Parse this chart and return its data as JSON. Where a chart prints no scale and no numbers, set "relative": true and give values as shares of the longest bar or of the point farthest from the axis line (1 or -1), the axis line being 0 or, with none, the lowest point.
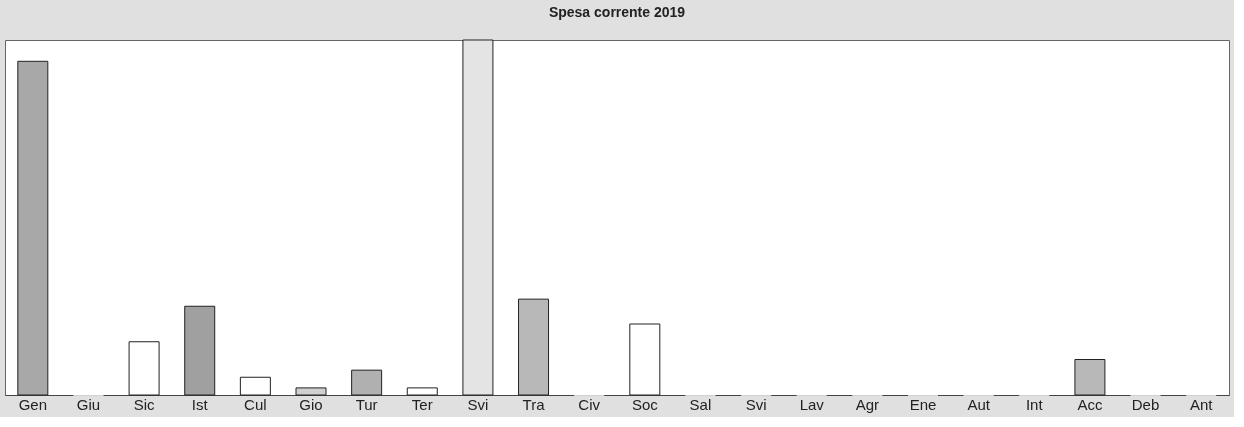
{
  "chart_data": {
    "type": "bar",
    "title": "Spesa corrente 2019",
    "relative": true,
    "categories": [
      "Gen",
      "Giu",
      "Sic",
      "Ist",
      "Cul",
      "Gio",
      "Tur",
      "Ter",
      "Svi",
      "Tra",
      "Civ",
      "Soc",
      "Sal",
      "Svi",
      "Lav",
      "Agr",
      "Ene",
      "Aut",
      "Int",
      "Acc",
      "Deb",
      "Ant"
    ],
    "values": [
      0.94,
      0,
      0.15,
      0.25,
      0.05,
      0.02,
      0.07,
      0.02,
      1,
      0.27,
      0,
      0.2,
      0,
      0,
      0,
      0,
      0,
      0,
      0,
      0.1,
      0,
      0
    ],
    "colors": [
      "#a8a8a8",
      "#ffffff",
      "#ffffff",
      "#a0a0a0",
      "#ffffff",
      "#d0d0d0",
      "#b0b0b0",
      "#ffffff",
      "#e4e4e4",
      "#b8b8b8",
      "#ffffff",
      "#ffffff",
      "#ffffff",
      "#ffffff",
      "#ffffff",
      "#ffffff",
      "#ffffff",
      "#ffffff",
      "#ffffff",
      "#b8b8b8",
      "#ffffff",
      "#ffffff"
    ]
  }
}
